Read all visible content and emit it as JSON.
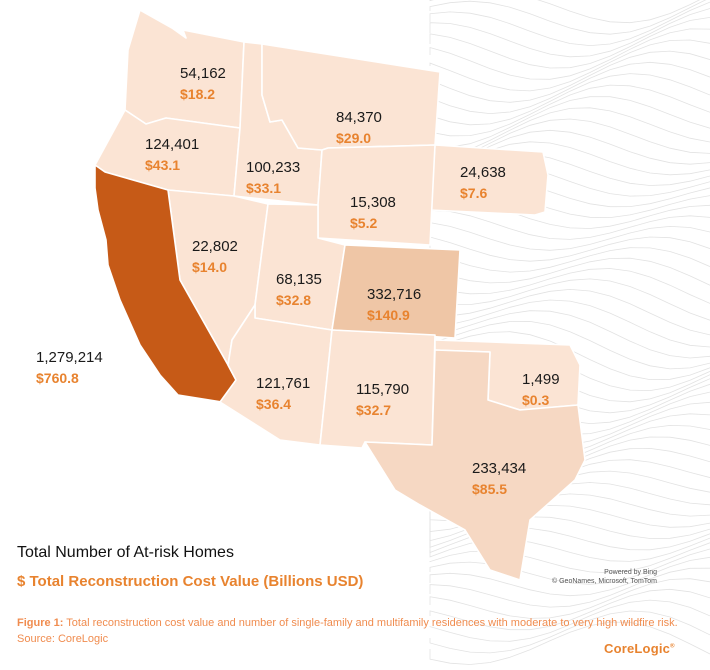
{
  "colors": {
    "accent": "#e8832f",
    "highest": "#c65a17",
    "high": "#efc6a6",
    "medium": "#f6d8c3",
    "low": "#fbe4d4",
    "border": "#ffffff",
    "caption": "#f08c4f"
  },
  "map": {
    "states": [
      {
        "key": "WA",
        "homes": "54,162",
        "cost": "$18.2",
        "fill": "low"
      },
      {
        "key": "OR",
        "homes": "124,401",
        "cost": "$43.1",
        "fill": "low"
      },
      {
        "key": "ID",
        "homes": "100,233",
        "cost": "$33.1",
        "fill": "low"
      },
      {
        "key": "MT",
        "homes": "84,370",
        "cost": "$29.0",
        "fill": "low"
      },
      {
        "key": "SD",
        "homes": "24,638",
        "cost": "$7.6",
        "fill": "low"
      },
      {
        "key": "WY",
        "homes": "15,308",
        "cost": "$5.2",
        "fill": "low"
      },
      {
        "key": "NV",
        "homes": "22,802",
        "cost": "$14.0",
        "fill": "low"
      },
      {
        "key": "UT",
        "homes": "68,135",
        "cost": "$32.8",
        "fill": "low"
      },
      {
        "key": "CO",
        "homes": "332,716",
        "cost": "$140.9",
        "fill": "high"
      },
      {
        "key": "CA",
        "homes": "1,279,214",
        "cost": "$760.8",
        "fill": "highest"
      },
      {
        "key": "AZ",
        "homes": "121,761",
        "cost": "$36.4",
        "fill": "low"
      },
      {
        "key": "NM",
        "homes": "115,790",
        "cost": "$32.7",
        "fill": "low"
      },
      {
        "key": "OK",
        "homes": "1,499",
        "cost": "$0.3",
        "fill": "low"
      },
      {
        "key": "TX",
        "homes": "233,434",
        "cost": "$85.5",
        "fill": "medium"
      }
    ]
  },
  "legend": {
    "homes_label": "Total Number of  At-risk Homes",
    "cost_label": "$ Total Reconstruction Cost Value (Billions USD)"
  },
  "attribution": {
    "line1": "Powered by Bing",
    "line2": "© GeoNames, Microsoft, TomTom"
  },
  "caption": {
    "label": "Figure 1:",
    "text": " Total reconstruction cost value and number of single-family and multifamily residences with moderate to very high wildfire risk. Source: CoreLogic"
  },
  "brand": {
    "name": "CoreLogic",
    "mark": "®"
  }
}
